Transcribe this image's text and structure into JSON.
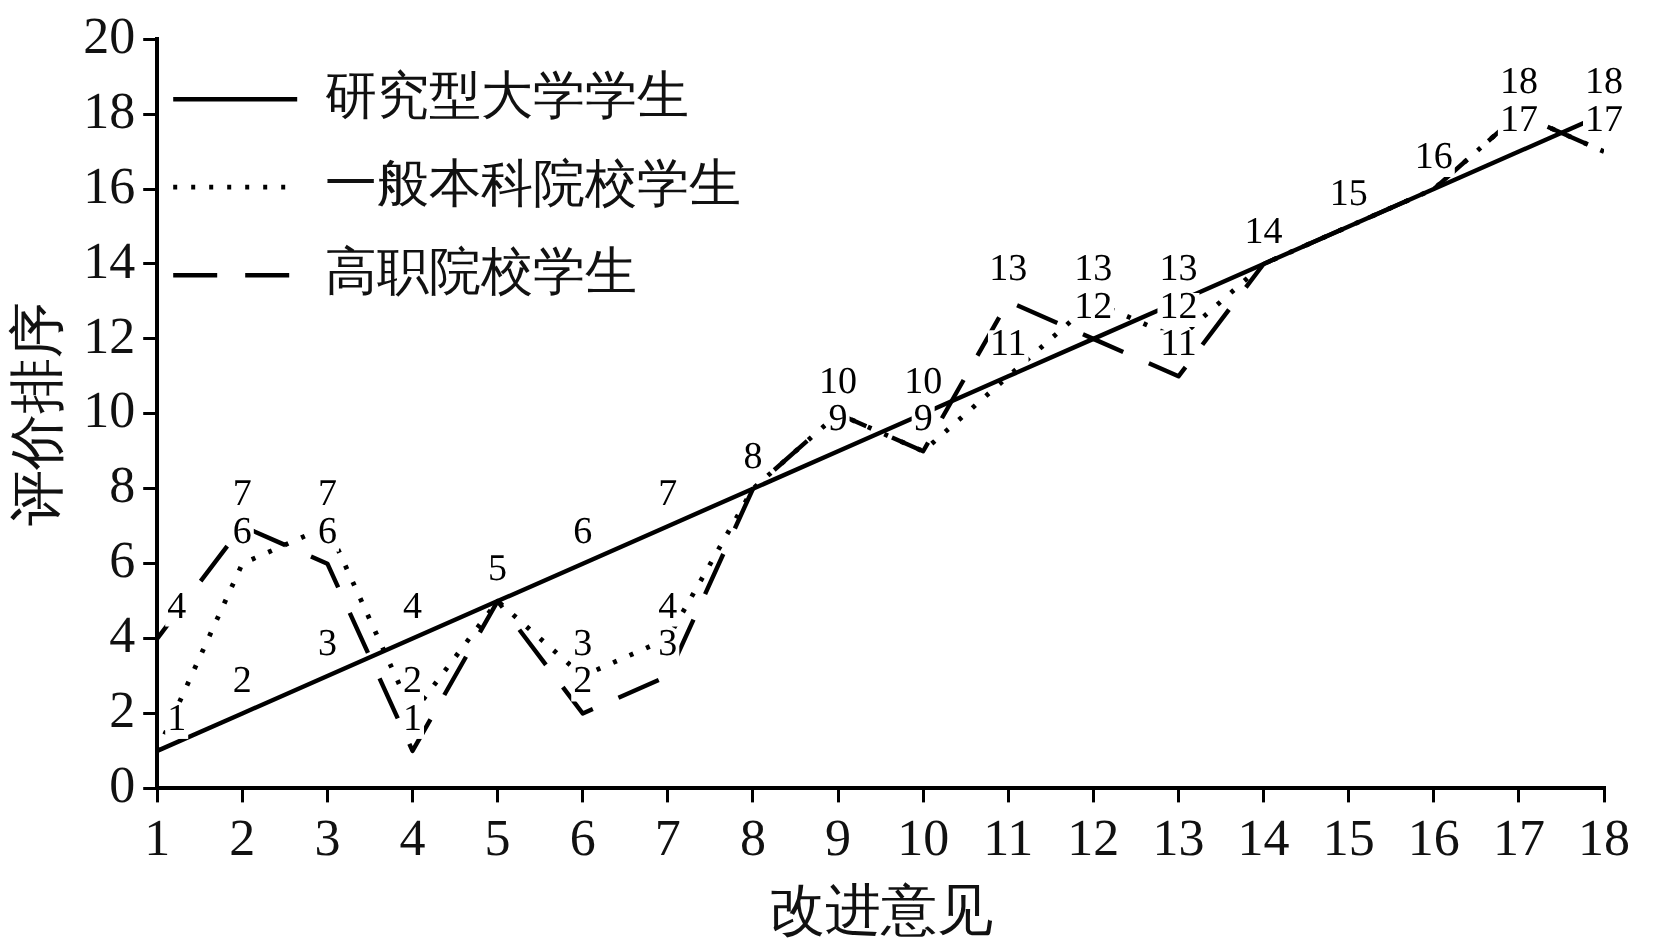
{
  "chart_data": {
    "type": "line",
    "xlabel": "改进意见",
    "ylabel": "评价排序",
    "x": [
      1,
      2,
      3,
      4,
      5,
      6,
      7,
      8,
      9,
      10,
      11,
      12,
      13,
      14,
      15,
      16,
      17,
      18
    ],
    "xlim": [
      1,
      18
    ],
    "xticks": [
      1,
      2,
      3,
      4,
      5,
      6,
      7,
      8,
      9,
      10,
      11,
      12,
      13,
      14,
      15,
      16,
      17,
      18
    ],
    "ylim": [
      0,
      20
    ],
    "yticks": [
      0,
      2,
      4,
      6,
      8,
      10,
      12,
      14,
      16,
      18,
      20
    ],
    "grid": false,
    "legend": "top left",
    "marker": "none",
    "series": [
      {
        "name": "研究型大学学生",
        "color": "#000000",
        "line_style": "solid",
        "values": [
          1,
          2,
          3,
          4,
          5,
          6,
          7,
          8,
          9,
          10,
          11,
          12,
          13,
          14,
          15,
          16,
          17,
          18
        ],
        "value_labels": [
          "1",
          "2",
          "3",
          "4",
          "5",
          "6",
          "7",
          "8",
          "9",
          "10",
          "11",
          "12",
          "13",
          "14",
          "15",
          "16",
          "17",
          "18"
        ]
      },
      {
        "name": "一般本科院校学生",
        "color": "#000000",
        "line_style": "dotted",
        "values": [
          1,
          6,
          7,
          2,
          5,
          3,
          4,
          8,
          10,
          9,
          11,
          13,
          12,
          14,
          15,
          16,
          18,
          17
        ],
        "value_labels": [
          null,
          "6",
          "7",
          "2",
          null,
          "3",
          "4",
          null,
          "10",
          "9",
          null,
          "13",
          "12",
          null,
          null,
          null,
          "18",
          "17"
        ]
      },
      {
        "name": "高职院校学生",
        "color": "#000000",
        "line_style": "dashed",
        "values": [
          4,
          7,
          6,
          1,
          5,
          2,
          3,
          8,
          10,
          9,
          13,
          12,
          11,
          14,
          15,
          16,
          18,
          17
        ],
        "value_labels": [
          "4",
          "7",
          "6",
          "1",
          null,
          "2",
          "3",
          null,
          null,
          null,
          "13",
          null,
          "11",
          null,
          null,
          null,
          null,
          null
        ]
      }
    ]
  }
}
